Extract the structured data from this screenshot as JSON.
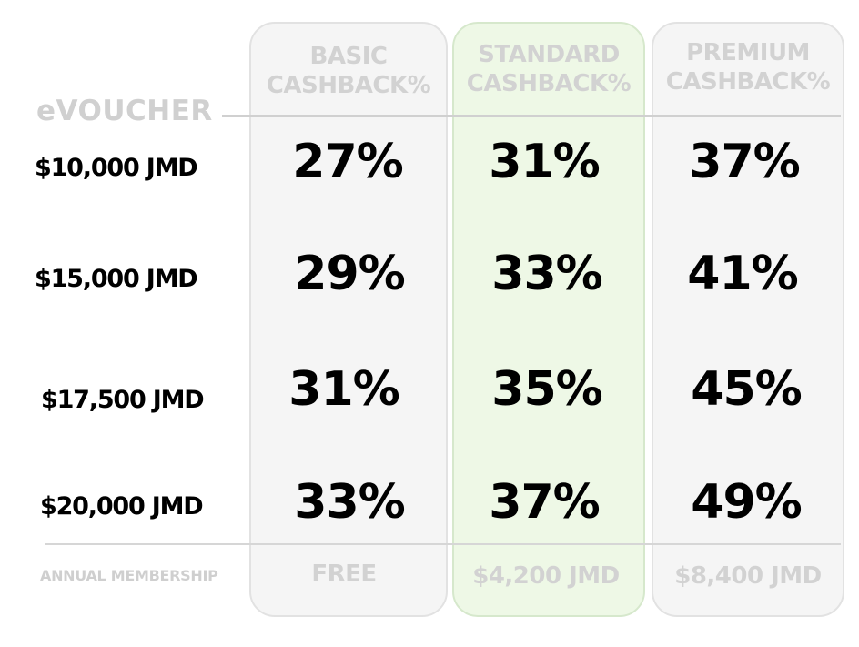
{
  "row_header": "eVOUCHER",
  "columns": [
    {
      "line1": "BASIC",
      "line2": "CASHBACK%",
      "price": "FREE"
    },
    {
      "line1": "STANDARD",
      "line2": "CASHBACK%",
      "price": "$4,200 JMD"
    },
    {
      "line1": "PREMIUM",
      "line2": "CASHBACK%",
      "price": "$8,400 JMD"
    }
  ],
  "rows": [
    {
      "label": "$10,000 JMD",
      "values": [
        "27%",
        "31%",
        "37%"
      ]
    },
    {
      "label": "$15,000 JMD",
      "values": [
        "29%",
        "33%",
        "41%"
      ]
    },
    {
      "label": "$17,500 JMD",
      "values": [
        "31%",
        "35%",
        "45%"
      ]
    },
    {
      "label": "$20,000 JMD",
      "values": [
        "33%",
        "37%",
        "49%"
      ]
    }
  ],
  "footer_label": "ANNUAL MEMBERSHIP",
  "colors": {
    "highlight": "#eef8e6",
    "muted": "#d2d2d2",
    "text": "#000000"
  }
}
